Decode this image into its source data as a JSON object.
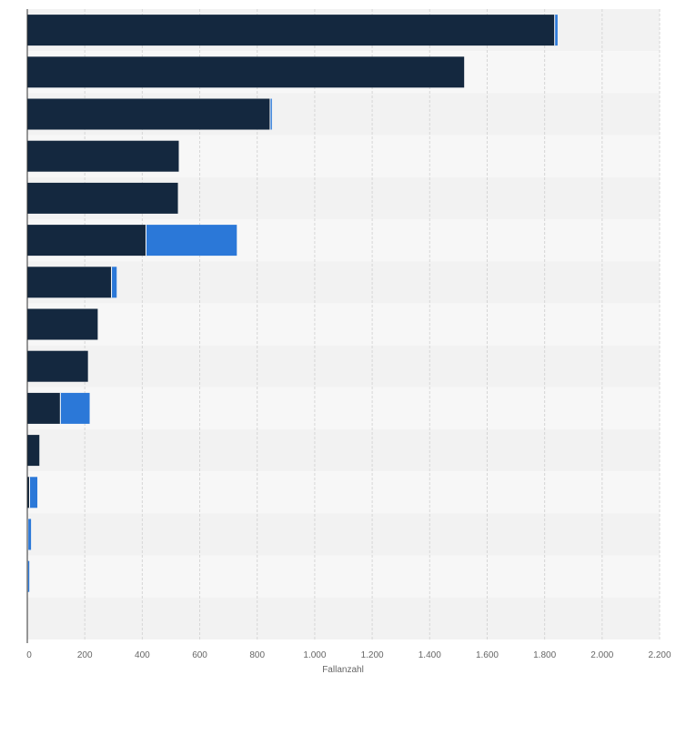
{
  "chart_data": {
    "type": "bar",
    "orientation": "horizontal",
    "stacked": true,
    "categories": [
      "",
      "",
      "",
      "",
      "",
      "",
      "",
      "",
      "",
      "",
      "",
      "",
      "",
      "",
      ""
    ],
    "series": [
      {
        "color": "#14283f",
        "values": [
          1835,
          1520,
          845,
          527,
          524,
          413,
          293,
          245,
          211,
          115,
          42,
          8,
          2,
          1,
          0
        ]
      },
      {
        "color": "#2b78d8",
        "values": [
          10,
          0,
          6,
          0,
          0,
          316,
          18,
          0,
          0,
          102,
          0,
          27,
          11,
          6,
          0
        ]
      }
    ],
    "xlabel": "Fallanzahl",
    "ylabel": "",
    "xlim": [
      0,
      2200
    ],
    "x_ticks": [
      0,
      200,
      400,
      600,
      800,
      1000,
      1200,
      1400,
      1600,
      1800,
      2000,
      2200
    ],
    "x_tick_labels": [
      "0",
      "200",
      "400",
      "600",
      "800",
      "1.000",
      "1.200",
      "1.400",
      "1.600",
      "1.800",
      "2.000",
      "2.200"
    ],
    "grid": true,
    "legend": "none"
  }
}
